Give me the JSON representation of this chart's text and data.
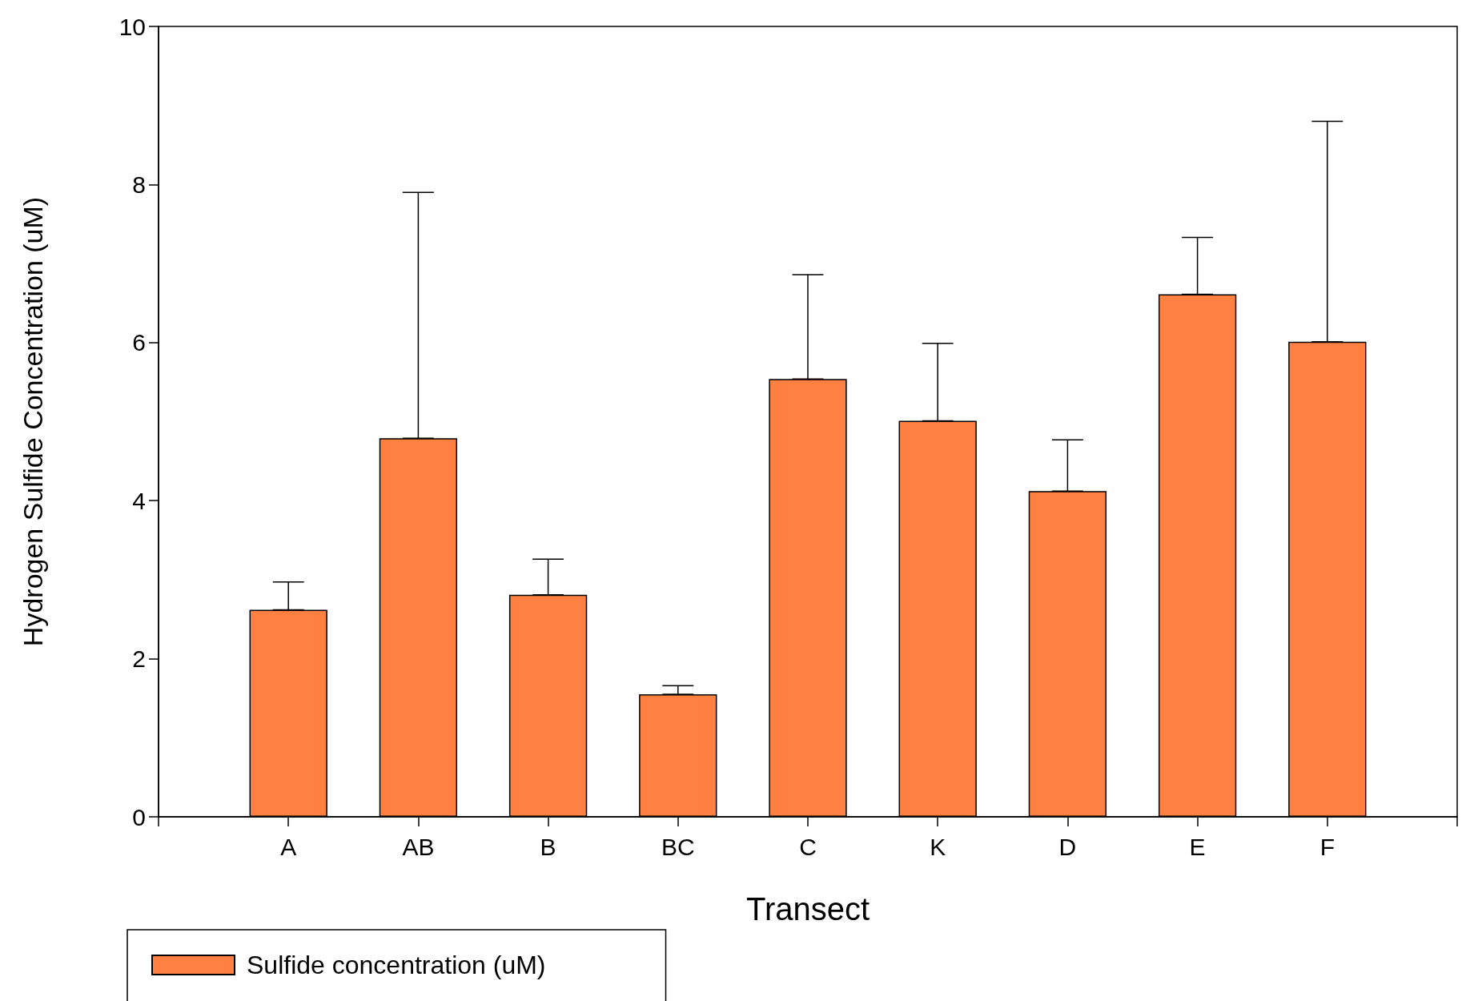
{
  "chart_data": {
    "type": "bar",
    "xlabel": "Transect",
    "ylabel": "Hydrogen Sulfide Concentration (uM)",
    "categories": [
      "A",
      "AB",
      "B",
      "BC",
      "C",
      "K",
      "D",
      "E",
      "F"
    ],
    "series": [
      {
        "name": "Sulfide concentration (uM)",
        "color": "#ff8040",
        "values": [
          2.62,
          4.79,
          2.81,
          1.55,
          5.54,
          5.01,
          4.12,
          6.61,
          6.01
        ],
        "errors": [
          [
            2.62,
            2.97
          ],
          [
            4.79,
            7.9
          ],
          [
            2.81,
            3.26
          ],
          [
            1.55,
            1.66
          ],
          [
            5.54,
            6.86
          ],
          [
            5.01,
            5.99
          ],
          [
            4.12,
            4.77
          ],
          [
            6.61,
            7.33
          ],
          [
            6.01,
            8.8
          ]
        ]
      }
    ],
    "ylim": [
      0,
      10
    ],
    "yticks": [
      0,
      2,
      4,
      6,
      8,
      10
    ],
    "grid": false,
    "legend": "bottom left"
  }
}
